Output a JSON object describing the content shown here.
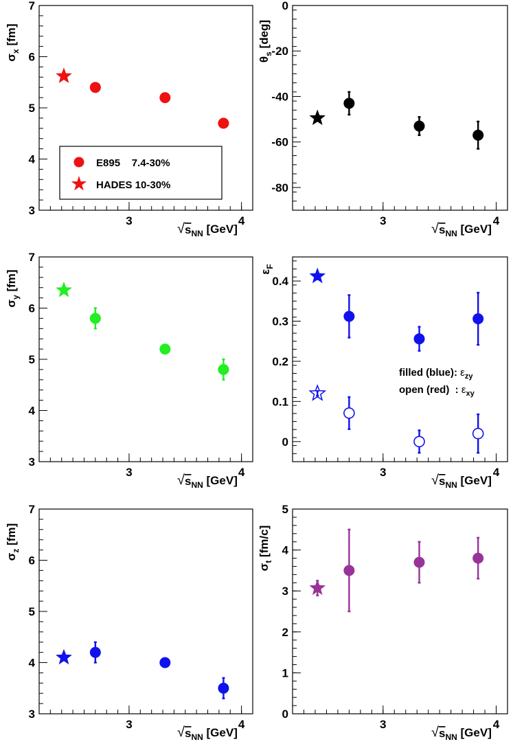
{
  "colors": {
    "red": "#ee1111",
    "black": "#000000",
    "green": "#22ee22",
    "blue": "#1111ee",
    "purple": "#993399"
  },
  "chart_data": [
    {
      "id": "sigma_x",
      "type": "scatter",
      "xlabel": "√sNN [GeV]",
      "ylabel": "σx [fm]",
      "xlim": [
        2.2,
        4.1
      ],
      "ylim": [
        3,
        7
      ],
      "x_ticks": [
        3,
        4
      ],
      "y_ticks": [
        3,
        4,
        5,
        6,
        7
      ],
      "series": [
        {
          "name": "E895    7.4-30%",
          "marker": "circle",
          "color": "red",
          "x": [
            2.7,
            3.32,
            3.84
          ],
          "y": [
            5.4,
            5.2,
            4.7
          ],
          "yerr": [
            0,
            0,
            0
          ]
        },
        {
          "name": "HADES 10-30%",
          "marker": "star",
          "color": "red",
          "x": [
            2.42
          ],
          "y": [
            5.62
          ],
          "yerr": [
            0
          ]
        }
      ],
      "legend": {
        "position": "bottom-left",
        "entries": [
          "E895    7.4-30%",
          "HADES 10-30%"
        ]
      }
    },
    {
      "id": "theta_s",
      "type": "scatter",
      "xlabel": "√sNN [GeV]",
      "ylabel": "θs [deg]",
      "xlim": [
        2.2,
        4.1
      ],
      "ylim": [
        -90,
        0
      ],
      "x_ticks": [
        3,
        4
      ],
      "y_ticks": [
        -80,
        -60,
        -40,
        -20,
        0
      ],
      "series": [
        {
          "marker": "circle",
          "color": "black",
          "x": [
            2.7,
            3.32,
            3.84
          ],
          "y": [
            -43,
            -53,
            -57
          ],
          "yerr": [
            5,
            4,
            6
          ]
        },
        {
          "marker": "star",
          "color": "black",
          "x": [
            2.42
          ],
          "y": [
            -49.5
          ],
          "yerr": [
            0
          ]
        }
      ]
    },
    {
      "id": "sigma_y",
      "type": "scatter",
      "xlabel": "√sNN [GeV]",
      "ylabel": "σy [fm]",
      "xlim": [
        2.2,
        4.1
      ],
      "ylim": [
        3,
        7
      ],
      "x_ticks": [
        3,
        4
      ],
      "y_ticks": [
        3,
        4,
        5,
        6,
        7
      ],
      "series": [
        {
          "marker": "circle",
          "color": "green",
          "x": [
            2.7,
            3.32,
            3.84
          ],
          "y": [
            5.8,
            5.2,
            4.8
          ],
          "yerr": [
            0.2,
            0,
            0.2
          ]
        },
        {
          "marker": "star",
          "color": "green",
          "x": [
            2.42
          ],
          "y": [
            6.35
          ],
          "yerr": [
            0
          ]
        }
      ]
    },
    {
      "id": "eps_F",
      "type": "scatter",
      "xlabel": "√sNN [GeV]",
      "ylabel": "εF",
      "xlim": [
        2.2,
        4.1
      ],
      "ylim": [
        -0.05,
        0.46
      ],
      "x_ticks": [
        3,
        4
      ],
      "y_ticks": [
        0,
        0.1,
        0.2,
        0.3,
        0.4
      ],
      "y_tick_labels": [
        "0",
        "0.1",
        "0.2",
        "0.3",
        "0.4"
      ],
      "series": [
        {
          "marker": "circle",
          "color": "blue",
          "x": [
            2.7,
            3.32,
            3.84
          ],
          "y": [
            0.312,
            0.256,
            0.306
          ],
          "yerr": [
            0.053,
            0.03,
            0.065
          ]
        },
        {
          "marker": "star",
          "color": "blue",
          "x": [
            2.42
          ],
          "y": [
            0.412
          ],
          "yerr": [
            0.008
          ]
        },
        {
          "marker": "open-circle",
          "color": "blue",
          "x": [
            2.7,
            3.32,
            3.84
          ],
          "y": [
            0.071,
            0.0,
            0.02
          ],
          "yerr": [
            0.04,
            0.028,
            0.048
          ]
        },
        {
          "marker": "open-star",
          "color": "blue",
          "x": [
            2.42
          ],
          "y": [
            0.12
          ],
          "yerr": [
            0.006
          ]
        }
      ],
      "annotations": [
        {
          "text": "filled (blue): ",
          "symbol": "ε",
          "sub": "zy"
        },
        {
          "text": "open (red)  : ",
          "symbol": "ε",
          "sub": "xy"
        }
      ]
    },
    {
      "id": "sigma_z",
      "type": "scatter",
      "xlabel": "√sNN [GeV]",
      "ylabel": "σz [fm]",
      "xlim": [
        2.2,
        4.1
      ],
      "ylim": [
        3,
        7
      ],
      "x_ticks": [
        3,
        4
      ],
      "y_ticks": [
        3,
        4,
        5,
        6,
        7
      ],
      "series": [
        {
          "marker": "circle",
          "color": "blue",
          "x": [
            2.7,
            3.32,
            3.84
          ],
          "y": [
            4.2,
            4.0,
            3.5
          ],
          "yerr": [
            0.2,
            0,
            0.2
          ]
        },
        {
          "marker": "star",
          "color": "blue",
          "x": [
            2.42
          ],
          "y": [
            4.1
          ],
          "yerr": [
            0
          ]
        }
      ]
    },
    {
      "id": "sigma_t",
      "type": "scatter",
      "xlabel": "√sNN [GeV]",
      "ylabel": "σt [fm/c]",
      "xlim": [
        2.2,
        4.1
      ],
      "ylim": [
        0,
        5
      ],
      "x_ticks": [
        3,
        4
      ],
      "y_ticks": [
        0,
        1,
        2,
        3,
        4,
        5
      ],
      "series": [
        {
          "marker": "circle",
          "color": "purple",
          "x": [
            2.7,
            3.32,
            3.84
          ],
          "y": [
            3.5,
            3.7,
            3.8
          ],
          "yerr": [
            1.0,
            0.5,
            0.5
          ]
        },
        {
          "marker": "star",
          "color": "purple",
          "x": [
            2.42
          ],
          "y": [
            3.07
          ],
          "yerr": [
            0.18
          ]
        }
      ]
    }
  ],
  "labels": {
    "xaxis_root": "s",
    "xaxis_sub": "NN",
    "xaxis_unit": " [GeV]",
    "y_sigma": "σ",
    "y_theta": "θ",
    "y_eps": "ε",
    "sigma_x_sub": "x",
    "sigma_x_unit": " [fm]",
    "theta_s_sub": "s",
    "theta_s_unit": " [deg]",
    "sigma_y_sub": "y",
    "sigma_y_unit": " [fm]",
    "eps_F_sub": "F",
    "sigma_z_sub": "z",
    "sigma_z_unit": " [fm]",
    "sigma_t_sub": "t",
    "sigma_t_unit": " [fm/c]"
  }
}
